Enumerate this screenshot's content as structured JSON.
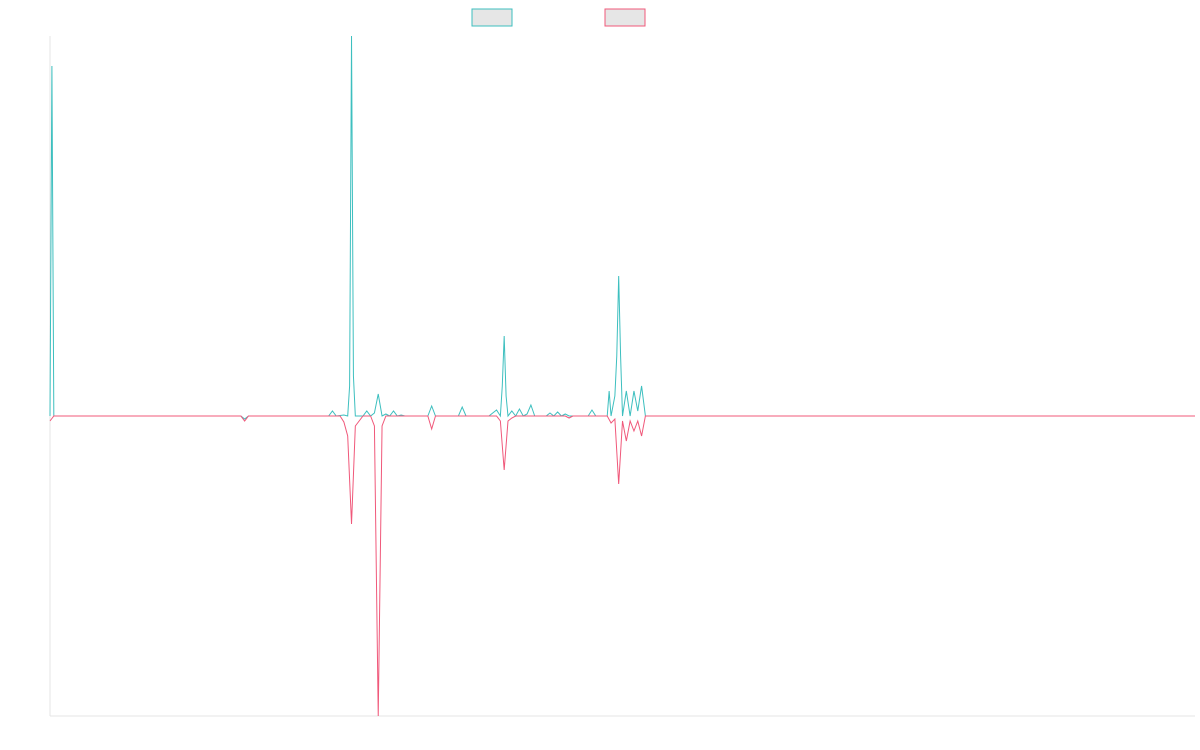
{
  "colors": {
    "series_a": "#3dbfbf",
    "series_b": "#f0587a",
    "legend_fill": "#e6e6e6",
    "axis": "#e4e4e4"
  },
  "chart_data": {
    "type": "line",
    "title": "",
    "xlabel": "",
    "ylabel": "",
    "grid": false,
    "legend_position": "top-center",
    "xlim": [
      0,
      300
    ],
    "ylim": [
      -300,
      380
    ],
    "series": [
      {
        "color": "#3dbfbf",
        "points": [
          [
            0,
            0
          ],
          [
            0.5,
            350
          ],
          [
            1,
            0
          ],
          [
            50,
            0
          ],
          [
            51,
            -3
          ],
          [
            52,
            0
          ],
          [
            73,
            0
          ],
          [
            74,
            5
          ],
          [
            75,
            0
          ],
          [
            77,
            1
          ],
          [
            78,
            0
          ],
          [
            78.5,
            30
          ],
          [
            79,
            380
          ],
          [
            79.5,
            40
          ],
          [
            80,
            0
          ],
          [
            82,
            0
          ],
          [
            83,
            5
          ],
          [
            84,
            0
          ],
          [
            85,
            3
          ],
          [
            86,
            22
          ],
          [
            87,
            0
          ],
          [
            88,
            2
          ],
          [
            89,
            0
          ],
          [
            90,
            5
          ],
          [
            91,
            0
          ],
          [
            92,
            1
          ],
          [
            93,
            0
          ],
          [
            99,
            0
          ],
          [
            100,
            10
          ],
          [
            101,
            0
          ],
          [
            107,
            0
          ],
          [
            108,
            9
          ],
          [
            109,
            0
          ],
          [
            115,
            0
          ],
          [
            117,
            6
          ],
          [
            118,
            0
          ],
          [
            118.5,
            30
          ],
          [
            119,
            80
          ],
          [
            119.5,
            20
          ],
          [
            120,
            0
          ],
          [
            121,
            5
          ],
          [
            122,
            0
          ],
          [
            123,
            7
          ],
          [
            124,
            0
          ],
          [
            125,
            2
          ],
          [
            126,
            11
          ],
          [
            127,
            0
          ],
          [
            130,
            0
          ],
          [
            131,
            3
          ],
          [
            132,
            0
          ],
          [
            133,
            4
          ],
          [
            134,
            0
          ],
          [
            135,
            2
          ],
          [
            136,
            0
          ],
          [
            141,
            0
          ],
          [
            142,
            6
          ],
          [
            143,
            0
          ],
          [
            146,
            0
          ],
          [
            146.5,
            25
          ],
          [
            147,
            0
          ],
          [
            148,
            20
          ],
          [
            148.5,
            60
          ],
          [
            149,
            140
          ],
          [
            149.5,
            60
          ],
          [
            150,
            0
          ],
          [
            151,
            25
          ],
          [
            152,
            0
          ],
          [
            153,
            25
          ],
          [
            154,
            5
          ],
          [
            155,
            30
          ],
          [
            156,
            0
          ],
          [
            300,
            0
          ]
        ]
      },
      {
        "color": "#f0587a",
        "points": [
          [
            0,
            -5
          ],
          [
            1,
            0
          ],
          [
            50,
            0
          ],
          [
            51,
            -5
          ],
          [
            52,
            0
          ],
          [
            76,
            0
          ],
          [
            77,
            -6
          ],
          [
            78,
            -20
          ],
          [
            79,
            -108
          ],
          [
            80,
            -10
          ],
          [
            82,
            0
          ],
          [
            84,
            0
          ],
          [
            85,
            -10
          ],
          [
            86,
            -300
          ],
          [
            87,
            -10
          ],
          [
            88,
            0
          ],
          [
            98,
            0
          ],
          [
            99,
            0
          ],
          [
            100,
            -13
          ],
          [
            101,
            0
          ],
          [
            117,
            0
          ],
          [
            118,
            -5
          ],
          [
            119,
            -54
          ],
          [
            120,
            -5
          ],
          [
            121,
            -2
          ],
          [
            122,
            0
          ],
          [
            135,
            0
          ],
          [
            136,
            -2
          ],
          [
            137,
            0
          ],
          [
            146,
            0
          ],
          [
            147,
            -7
          ],
          [
            148,
            -3
          ],
          [
            149,
            -68
          ],
          [
            150,
            -5
          ],
          [
            151,
            -25
          ],
          [
            152,
            -5
          ],
          [
            153,
            -15
          ],
          [
            154,
            -5
          ],
          [
            155,
            -20
          ],
          [
            156,
            0
          ],
          [
            300,
            0
          ]
        ]
      }
    ]
  }
}
